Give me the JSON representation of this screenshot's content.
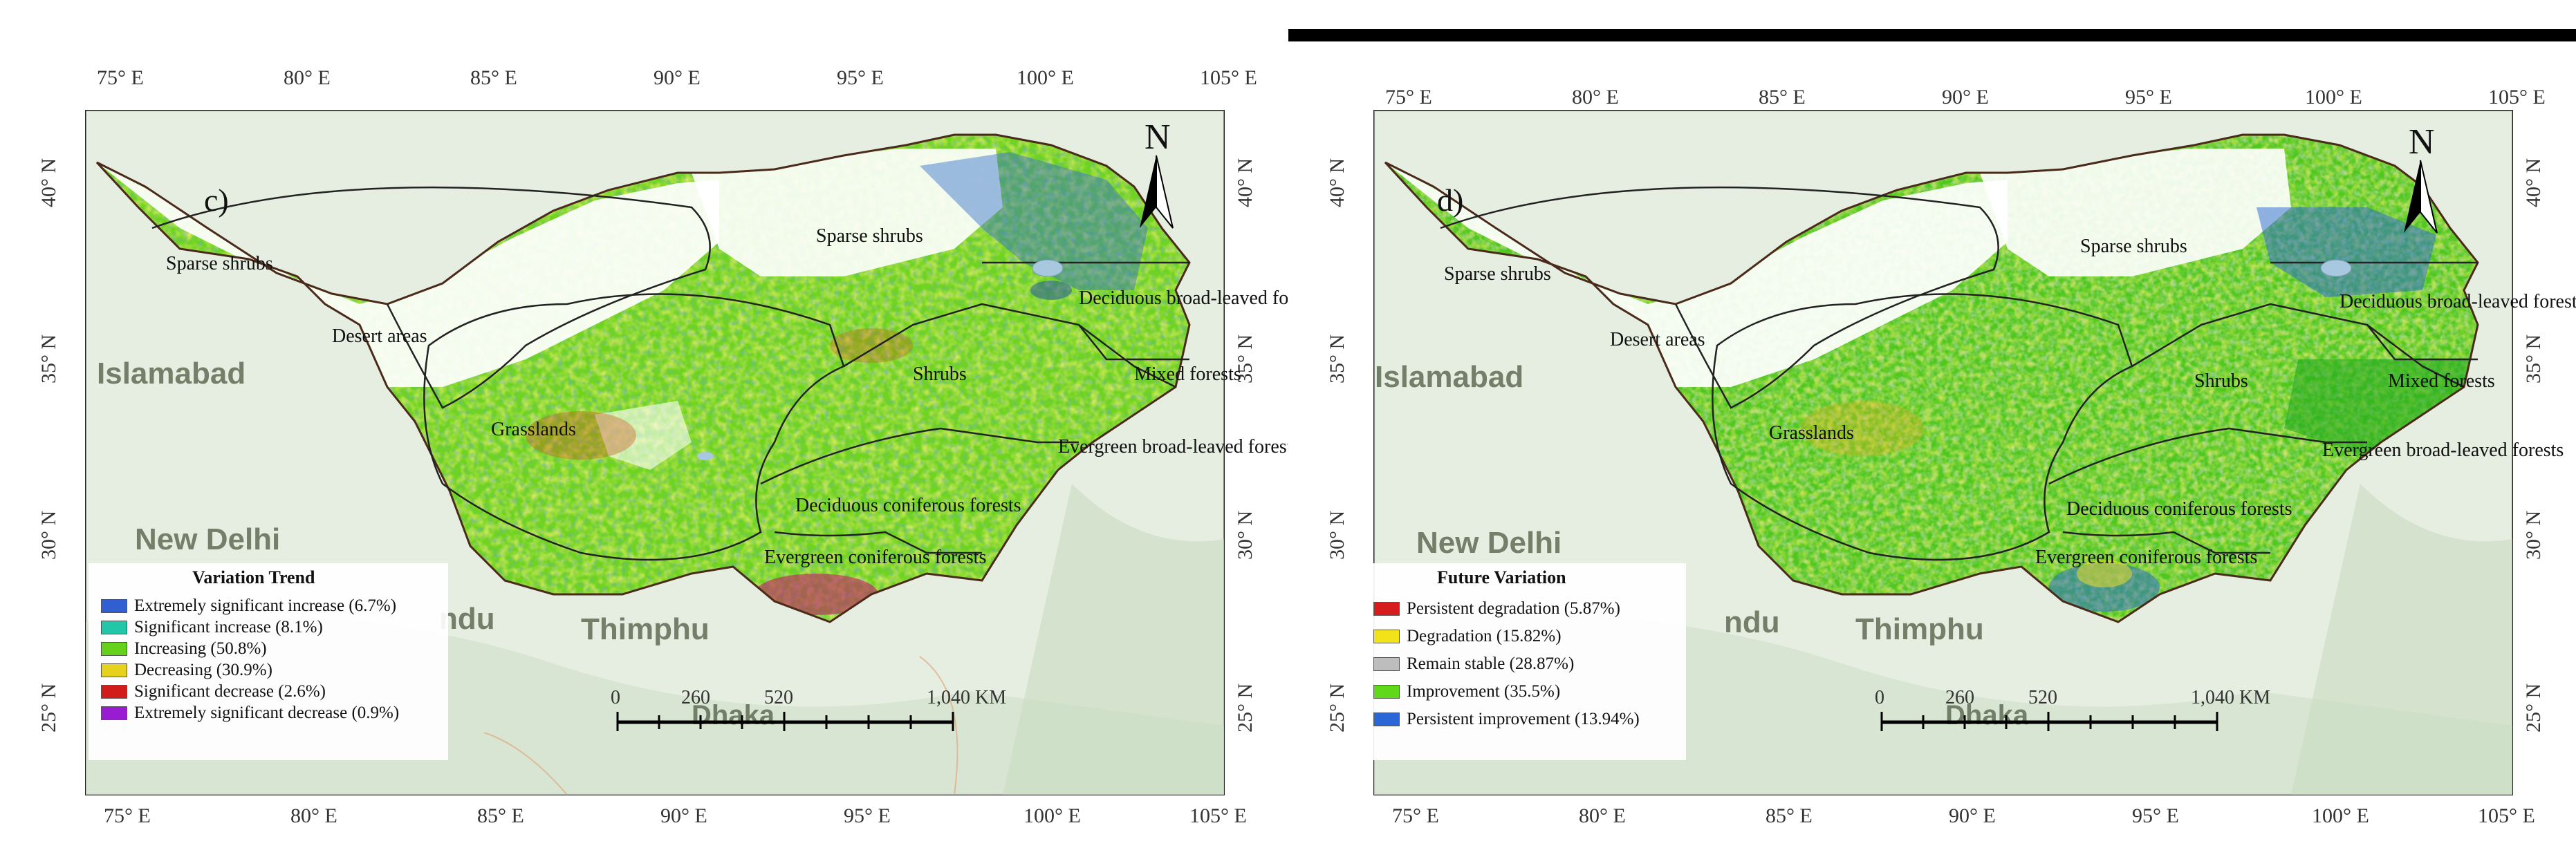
{
  "panels": [
    {
      "id": "c",
      "panel_label": "c)",
      "top_lon_ticks": [
        "75° E",
        "80° E",
        "85° E",
        "90° E",
        "95° E",
        "100° E",
        "105° E"
      ],
      "bottom_lon_ticks": [
        "75° E",
        "80° E",
        "85° E",
        "90° E",
        "95° E",
        "100° E",
        "105° E"
      ],
      "lat_ticks": [
        "40° N",
        "35° N",
        "30° N",
        "25° N"
      ],
      "north_label": "N",
      "region_labels": [
        "Sparse shrubs",
        "Sparse shrubs",
        "Desert areas",
        "Deciduous broad-leaved forests",
        "Shrubs",
        "Mixed forests",
        "Grasslands",
        "Evergreen broad-leaved forests",
        "Deciduous coniferous forests",
        "Evergreen coniferous forests"
      ],
      "cities": [
        "Islamabad",
        "New Delhi",
        "ndu",
        "Thimphu",
        "Dhaka"
      ],
      "scale_ticks": [
        "0",
        "260",
        "520",
        "1,040 KM"
      ],
      "legend": {
        "title": "Variation Trend",
        "items": [
          {
            "label": "Extremely significant increase (6.7%)",
            "color": "#2f5fd0"
          },
          {
            "label": "Significant increase (8.1%)",
            "color": "#22c6a8"
          },
          {
            "label": "Increasing (50.8%)",
            "color": "#66d11a"
          },
          {
            "label": "Decreasing (30.9%)",
            "color": "#e6d21c"
          },
          {
            "label": "Significant decrease (2.6%)",
            "color": "#d21c1c"
          },
          {
            "label": "Extremely significant decrease (0.9%)",
            "color": "#9a1cd2"
          }
        ]
      }
    },
    {
      "id": "d",
      "panel_label": "d)",
      "top_lon_ticks": [
        "75° E",
        "80° E",
        "85° E",
        "90° E",
        "95° E",
        "100° E",
        "105° E"
      ],
      "bottom_lon_ticks": [
        "75° E",
        "80° E",
        "85° E",
        "90° E",
        "95° E",
        "100° E",
        "105° E"
      ],
      "lat_ticks": [
        "40° N",
        "35° N",
        "30° N",
        "25° N"
      ],
      "north_label": "N",
      "region_labels": [
        "Sparse shrubs",
        "Sparse shrubs",
        "Desert areas",
        "Deciduous broad-leaved forests",
        "Shrubs",
        "Mixed forests",
        "Grasslands",
        "Evergreen broad-leaved forests",
        "Deciduous coniferous forests",
        "Evergreen coniferous forests"
      ],
      "cities": [
        "Islamabad",
        "New Delhi",
        "ndu",
        "Thimphu",
        "Dhaka"
      ],
      "scale_ticks": [
        "0",
        "260",
        "520",
        "1,040 KM"
      ],
      "legend": {
        "title": "Future Variation",
        "items": [
          {
            "label": "Persistent degradation (5.87%)",
            "color": "#d61c1c"
          },
          {
            "label": "Degradation (15.82%)",
            "color": "#f2e21a"
          },
          {
            "label": "Remain stable (28.87%)",
            "color": "#bdbdbd"
          },
          {
            "label": "Improvement (35.5%)",
            "color": "#5fd81a"
          },
          {
            "label": "Persistent improvement (13.94%)",
            "color": "#2a66d6"
          }
        ]
      }
    }
  ],
  "colors": {
    "panel_c_base": "#6fd41e",
    "panel_d_base": "#4fc81e",
    "sparse_dark": "#1f5fa8",
    "background_land": "#e8efe6"
  }
}
